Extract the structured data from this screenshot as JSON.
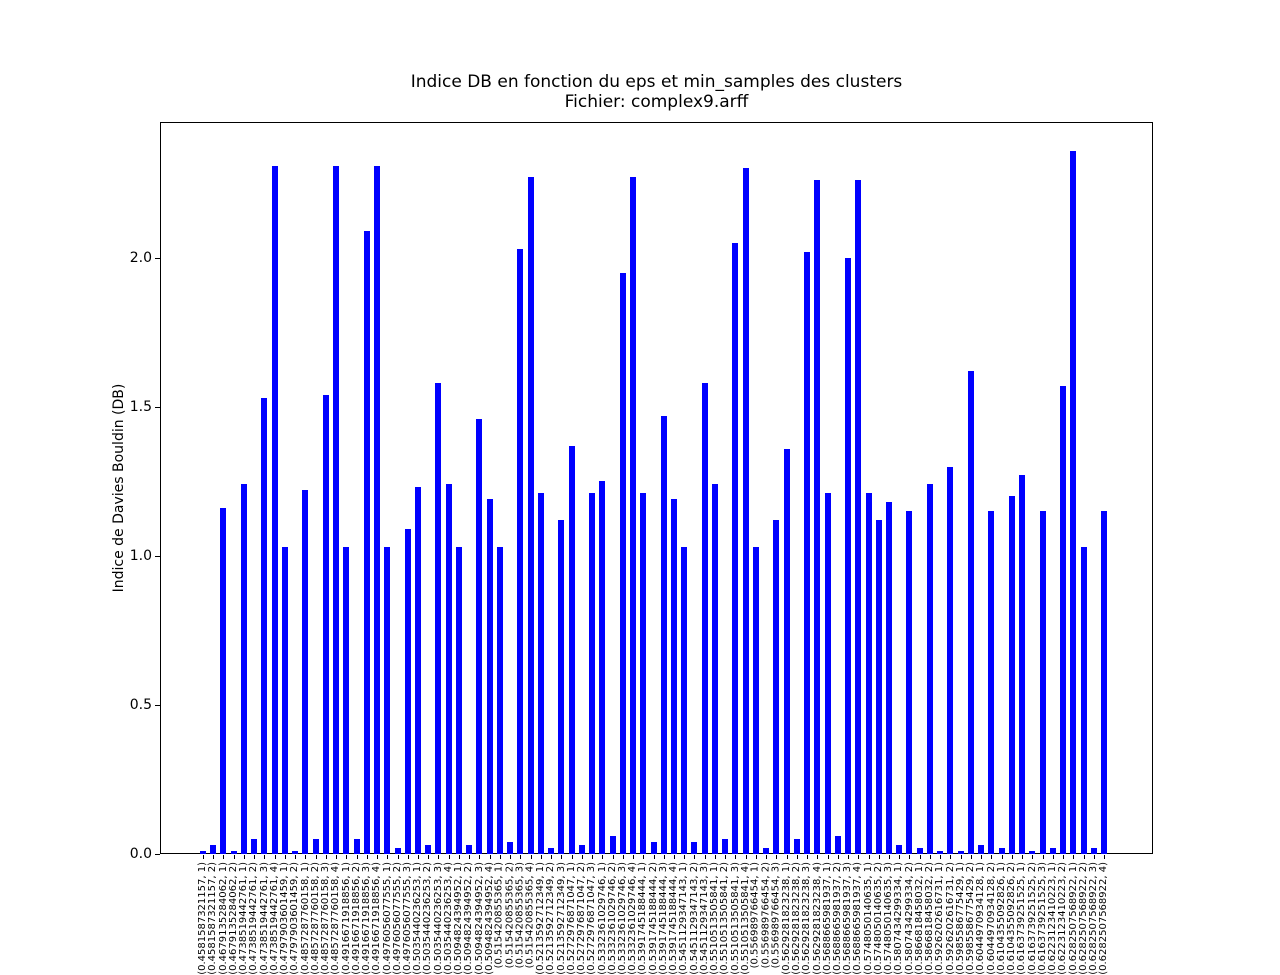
{
  "title_line1": "Indice DB en fonction du eps et min_samples des clusters",
  "title_line2": "Fichier: complex9.arff",
  "chart_data": {
    "type": "bar",
    "title": "Indice DB en fonction du eps et min_samples des clusters",
    "subtitle": "Fichier: complex9.arff",
    "xlabel": "",
    "ylabel": "Indice de Davies Bouldin (DB)",
    "bar_color": "#0000ff",
    "grid": false,
    "legend": null,
    "ylim": [
      0,
      2.456
    ],
    "yticks": [
      {
        "label": "0.0",
        "value": 0.0
      },
      {
        "label": "0.5",
        "value": 0.5
      },
      {
        "label": "1.0",
        "value": 1.0
      },
      {
        "label": "1.5",
        "value": 1.5
      },
      {
        "label": "2.0",
        "value": 2.0
      }
    ],
    "x_tick_rotation": 90,
    "categories": [
      "(0.4581587321157, 1)",
      "(0.4581587321157, 2)",
      "(0.4679135284062, 1)",
      "(0.4679135284062, 2)",
      "(0.4738519442761, 1)",
      "(0.4738519442761, 2)",
      "(0.4738519442761, 3)",
      "(0.4738519442761, 4)",
      "(0.4797903601459, 1)",
      "(0.4797903601459, 2)",
      "(0.4857287760158, 1)",
      "(0.4857287760158, 2)",
      "(0.4857287760158, 3)",
      "(0.4857287760158, 4)",
      "(0.4916671918856, 1)",
      "(0.4916671918856, 2)",
      "(0.4916671918856, 3)",
      "(0.4916671918856, 4)",
      "(0.4976056077555, 1)",
      "(0.4976056077555, 2)",
      "(0.4976056077555, 3)",
      "(0.5035440236253, 1)",
      "(0.5035440236253, 2)",
      "(0.5035440236253, 3)",
      "(0.5035440236253, 4)",
      "(0.5094824394952, 1)",
      "(0.5094824394952, 2)",
      "(0.5094824394952, 3)",
      "(0.5094824394952, 4)",
      "(0.515420855365, 1)",
      "(0.515420855365, 2)",
      "(0.515420855365, 3)",
      "(0.515420855365, 4)",
      "(0.5213592712349, 1)",
      "(0.5213592712349, 2)",
      "(0.5213592712349, 3)",
      "(0.5272976871047, 1)",
      "(0.5272976871047, 2)",
      "(0.5272976871047, 3)",
      "(0.5332361029746, 1)",
      "(0.5332361029746, 2)",
      "(0.5332361029746, 3)",
      "(0.5332361029746, 4)",
      "(0.5391745188444, 1)",
      "(0.5391745188444, 2)",
      "(0.5391745188444, 3)",
      "(0.5391745188444, 4)",
      "(0.5451129347143, 1)",
      "(0.5451129347143, 2)",
      "(0.5451129347143, 3)",
      "(0.5510513505841, 1)",
      "(0.5510513505841, 2)",
      "(0.5510513505841, 3)",
      "(0.5510513505841, 4)",
      "(0.556989766454, 1)",
      "(0.556989766454, 2)",
      "(0.556989766454, 3)",
      "(0.5629281823238, 1)",
      "(0.5629281823238, 2)",
      "(0.5629281823238, 3)",
      "(0.5629281823238, 4)",
      "(0.5688665981937, 1)",
      "(0.5688665981937, 2)",
      "(0.5688665981937, 3)",
      "(0.5688665981937, 4)",
      "(0.5748050140635, 1)",
      "(0.5748050140635, 2)",
      "(0.5748050140635, 3)",
      "(0.5807434299334, 1)",
      "(0.5807434299334, 2)",
      "(0.5866818458032, 1)",
      "(0.5866818458032, 2)",
      "(0.5926202616731, 1)",
      "(0.5926202616731, 2)",
      "(0.5985586775429, 1)",
      "(0.5985586775429, 2)",
      "(0.6044970934128, 1)",
      "(0.6044970934128, 2)",
      "(0.6104355092826, 1)",
      "(0.6104355092826, 2)",
      "(0.6163739251525, 1)",
      "(0.6163739251525, 2)",
      "(0.6163739251525, 3)",
      "(0.6223123410223, 1)",
      "(0.6223123410223, 2)",
      "(0.6282507568922, 1)",
      "(0.6282507568922, 2)",
      "(0.6282507568922, 3)",
      "(0.6282507568922, 4)"
    ],
    "values": [
      0.01,
      0.03,
      1.16,
      0.01,
      1.24,
      0.05,
      1.53,
      2.31,
      1.03,
      0.01,
      1.22,
      0.05,
      1.54,
      2.31,
      1.03,
      0.05,
      2.09,
      2.31,
      1.03,
      0.02,
      1.09,
      1.23,
      0.03,
      1.58,
      1.24,
      1.03,
      0.03,
      1.46,
      1.19,
      1.03,
      0.04,
      2.03,
      2.27,
      1.21,
      0.02,
      1.12,
      1.37,
      0.03,
      1.21,
      1.25,
      0.06,
      1.95,
      2.27,
      1.21,
      0.04,
      1.47,
      1.19,
      1.03,
      0.04,
      1.58,
      1.24,
      0.05,
      2.05,
      2.3,
      1.03,
      0.02,
      1.12,
      1.36,
      0.05,
      2.02,
      2.26,
      1.21,
      0.06,
      2.0,
      2.26,
      1.21,
      1.12,
      1.18,
      0.03,
      1.15,
      0.02,
      1.24,
      0.01,
      1.3,
      0.01,
      1.62,
      0.03,
      1.15,
      0.02,
      1.2,
      1.27,
      0.01,
      1.15,
      0.02,
      1.57,
      2.36,
      1.03,
      0.02,
      1.15
    ]
  }
}
